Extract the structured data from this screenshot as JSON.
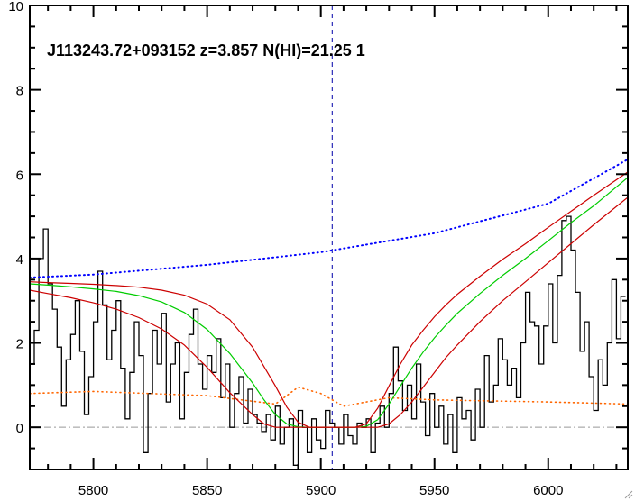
{
  "chart_data": {
    "type": "line",
    "title": "",
    "xlabel": "",
    "ylabel": "",
    "annotation": "J113243.72+093152 z=3.857 N(HI)=21.25 1",
    "xlim": [
      5772,
      6035
    ],
    "ylim": [
      -1,
      10
    ],
    "x_ticks": [
      5800,
      5850,
      5900,
      5950,
      6000
    ],
    "y_ticks": [
      0,
      2,
      4,
      6,
      8,
      10
    ],
    "grid": false,
    "absorber_center": 5905,
    "colors": {
      "flux": "#000000",
      "continuum": "#0000ff",
      "model_best": "#00cc00",
      "model_bounds": "#cc0000",
      "error": "#ff6600",
      "zero_line": "#999999",
      "center_line": "#0000aa"
    },
    "series": [
      {
        "role": "flux",
        "style": "step",
        "x": [
          5773,
          5775,
          5777,
          5779,
          5781,
          5783,
          5785,
          5787,
          5789,
          5791,
          5793,
          5795,
          5797,
          5799,
          5801,
          5803,
          5805,
          5807,
          5809,
          5811,
          5813,
          5815,
          5817,
          5819,
          5821,
          5823,
          5825,
          5827,
          5829,
          5831,
          5833,
          5835,
          5837,
          5839,
          5841,
          5843,
          5845,
          5847,
          5849,
          5851,
          5853,
          5855,
          5857,
          5859,
          5861,
          5863,
          5865,
          5867,
          5869,
          5871,
          5873,
          5875,
          5877,
          5879,
          5881,
          5883,
          5885,
          5887,
          5889,
          5891,
          5893,
          5895,
          5897,
          5899,
          5901,
          5903,
          5905,
          5907,
          5909,
          5911,
          5913,
          5915,
          5917,
          5919,
          5921,
          5923,
          5925,
          5927,
          5929,
          5931,
          5933,
          5935,
          5937,
          5939,
          5941,
          5943,
          5945,
          5947,
          5949,
          5951,
          5953,
          5955,
          5957,
          5959,
          5961,
          5963,
          5965,
          5967,
          5969,
          5971,
          5973,
          5975,
          5977,
          5979,
          5981,
          5983,
          5985,
          5987,
          5989,
          5991,
          5993,
          5995,
          5997,
          5999,
          6001,
          6003,
          6005,
          6007,
          6009,
          6011,
          6013,
          6015,
          6017,
          6019,
          6021,
          6023,
          6025,
          6027,
          6029,
          6031,
          6033
        ],
        "y": [
          1.5,
          2.3,
          4.0,
          4.7,
          3.4,
          2.8,
          1.9,
          0.5,
          1.6,
          2.2,
          3.0,
          1.8,
          0.3,
          1.2,
          2.5,
          3.7,
          2.9,
          1.6,
          2.3,
          3.0,
          1.4,
          0.2,
          1.3,
          2.5,
          1.7,
          -0.6,
          0.8,
          2.3,
          1.5,
          2.7,
          0.6,
          1.5,
          2.0,
          0.2,
          1.3,
          2.2,
          2.8,
          1.5,
          0.9,
          1.7,
          1.3,
          2.1,
          0.7,
          1.5,
          0.0,
          0.8,
          1.2,
          0.1,
          0.9,
          0.3,
          0.1,
          -0.1,
          0.3,
          -0.3,
          0.5,
          -0.4,
          0.0,
          0.2,
          -0.9,
          0.4,
          0.0,
          -0.6,
          0.2,
          -0.3,
          -0.5,
          0.4,
          0.1,
          0.0,
          -0.4,
          0.3,
          -0.2,
          -0.4,
          0.1,
          0.0,
          0.2,
          -0.6,
          0.1,
          0.5,
          0.0,
          0.8,
          1.9,
          1.1,
          0.4,
          1.0,
          0.2,
          1.5,
          0.6,
          -0.2,
          0.8,
          0.0,
          0.5,
          -0.4,
          0.3,
          -0.6,
          0.7,
          0.2,
          0.4,
          -0.3,
          0.9,
          0.0,
          1.7,
          0.6,
          1.0,
          2.1,
          1.6,
          1.0,
          1.4,
          0.7,
          2.0,
          3.2,
          2.5,
          2.4,
          1.5,
          2.4,
          3.4,
          2.0,
          3.6,
          4.9,
          5.0,
          4.2,
          3.2,
          1.8,
          2.5,
          1.2,
          0.4,
          1.6,
          1.0,
          2.0,
          3.5,
          2.1,
          3.1
        ]
      },
      {
        "role": "continuum",
        "style": "dotted",
        "x": [
          5772,
          5800,
          5850,
          5900,
          5950,
          6000,
          6035
        ],
        "y": [
          3.55,
          3.62,
          3.85,
          4.15,
          4.6,
          5.3,
          6.35
        ]
      },
      {
        "role": "error",
        "style": "dotted",
        "x": [
          5772,
          5800,
          5850,
          5880,
          5890,
          5900,
          5910,
          5920,
          5930,
          5950,
          6000,
          6035
        ],
        "y": [
          0.8,
          0.85,
          0.75,
          0.55,
          0.95,
          0.8,
          0.5,
          0.6,
          0.7,
          0.65,
          0.6,
          0.55
        ]
      },
      {
        "role": "model_best",
        "style": "solid",
        "x": [
          5772,
          5780,
          5790,
          5800,
          5810,
          5820,
          5830,
          5840,
          5850,
          5860,
          5870,
          5875,
          5880,
          5885,
          5890,
          5895,
          5900,
          5905,
          5910,
          5915,
          5920,
          5925,
          5930,
          5935,
          5940,
          5945,
          5950,
          5955,
          5960,
          5970,
          5980,
          5990,
          6000,
          6010,
          6020,
          6035
        ],
        "y": [
          3.4,
          3.37,
          3.33,
          3.28,
          3.22,
          3.12,
          2.97,
          2.72,
          2.32,
          1.75,
          1.05,
          0.65,
          0.3,
          0.08,
          0.01,
          0.0,
          0.0,
          0.0,
          0.0,
          0.0,
          0.02,
          0.18,
          0.55,
          0.98,
          1.4,
          1.78,
          2.12,
          2.42,
          2.7,
          3.17,
          3.6,
          4.0,
          4.42,
          4.85,
          5.25,
          5.92
        ]
      },
      {
        "role": "model_upper",
        "style": "solid",
        "x": [
          5772,
          5780,
          5790,
          5800,
          5810,
          5820,
          5830,
          5840,
          5850,
          5860,
          5870,
          5880,
          5885,
          5890,
          5895,
          5900,
          5905,
          5910,
          5915,
          5920,
          5925,
          5930,
          5935,
          5940,
          5945,
          5950,
          5955,
          5960,
          5970,
          5980,
          5990,
          6000,
          6010,
          6020,
          6035
        ],
        "y": [
          3.45,
          3.43,
          3.41,
          3.39,
          3.36,
          3.32,
          3.25,
          3.13,
          2.92,
          2.55,
          1.9,
          0.98,
          0.48,
          0.12,
          0.0,
          0.0,
          0.0,
          0.0,
          0.0,
          0.08,
          0.45,
          0.98,
          1.5,
          1.95,
          2.3,
          2.62,
          2.9,
          3.15,
          3.58,
          3.98,
          4.35,
          4.74,
          5.12,
          5.5,
          6.05
        ]
      },
      {
        "role": "model_lower",
        "style": "solid",
        "x": [
          5772,
          5780,
          5790,
          5800,
          5810,
          5820,
          5830,
          5840,
          5850,
          5860,
          5870,
          5875,
          5880,
          5885,
          5890,
          5900,
          5910,
          5920,
          5925,
          5930,
          5935,
          5940,
          5945,
          5950,
          5955,
          5960,
          5970,
          5980,
          5990,
          6000,
          6010,
          6020,
          6035
        ],
        "y": [
          3.25,
          3.17,
          3.07,
          2.95,
          2.8,
          2.6,
          2.33,
          1.95,
          1.42,
          0.82,
          0.3,
          0.08,
          0.0,
          0.0,
          0.0,
          0.0,
          0.0,
          0.0,
          0.0,
          0.08,
          0.3,
          0.6,
          0.95,
          1.3,
          1.65,
          1.95,
          2.5,
          3.0,
          3.45,
          3.9,
          4.35,
          4.8,
          5.45
        ]
      }
    ]
  }
}
